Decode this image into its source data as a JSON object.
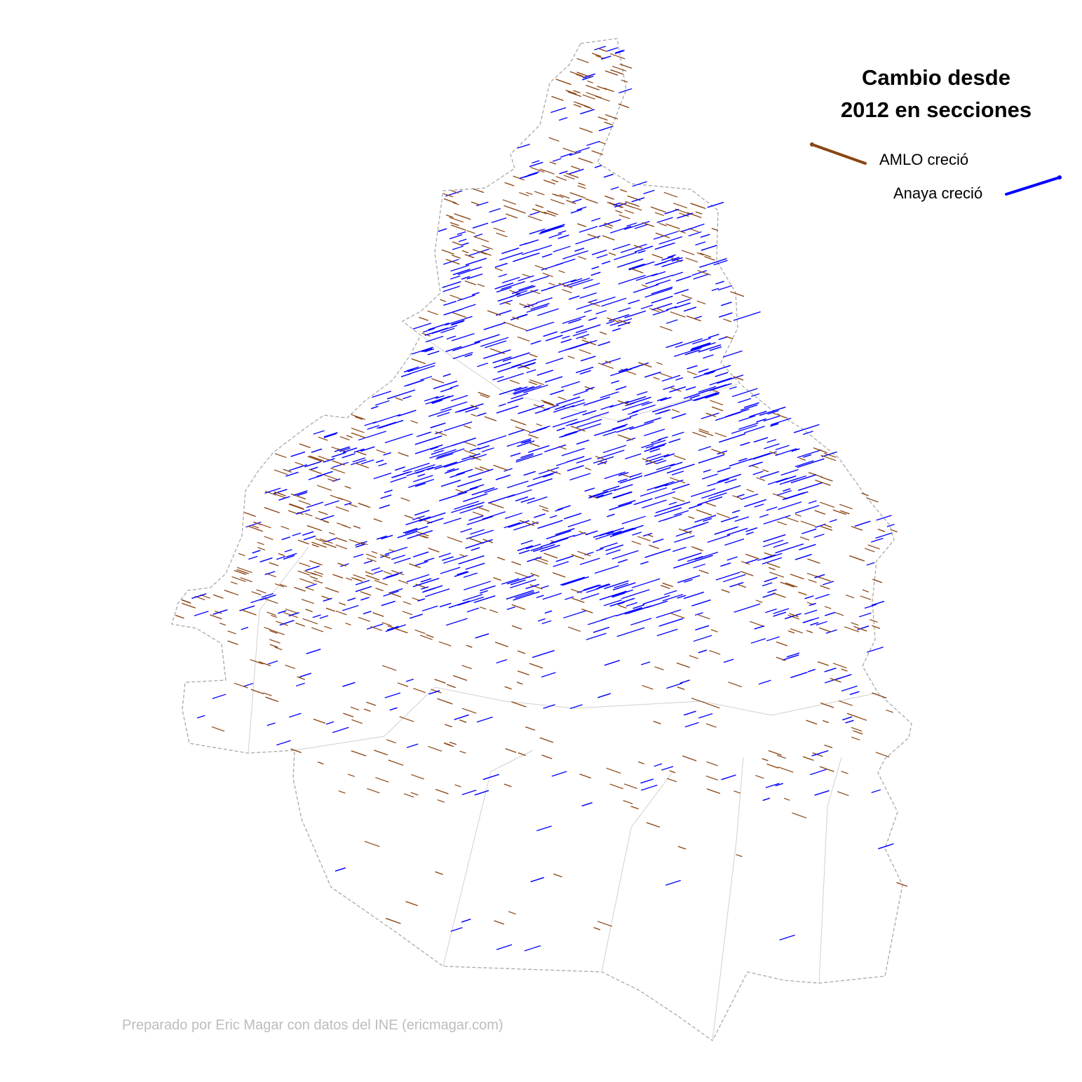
{
  "map": {
    "title_line1": "Cambio desde",
    "title_line2": "2012 en secciones",
    "legend": [
      {
        "label": "AMLO creció",
        "color": "#8B4513"
      },
      {
        "label": "Anaya creció",
        "color": "#0000FF"
      }
    ],
    "credit": "Preparado por Eric Magar con datos del INE (ericmagar.com)",
    "colors": {
      "amlo": "#8B4513",
      "anaya": "#0000FF",
      "section_borders": "#d0d0d0",
      "outer_border": "#a8a8a8"
    }
  }
}
